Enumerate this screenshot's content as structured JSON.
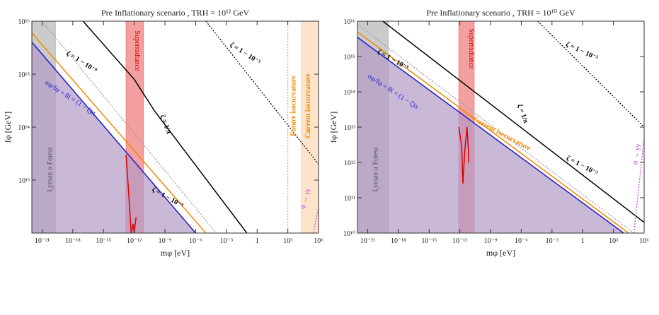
{
  "chart_data": [
    {
      "type": "line",
      "title": "Pre Inflationary scenario , TRH = 10¹² GeV",
      "x_label": "mφ [eV]",
      "y_label": "fφ [GeV]",
      "log_x": true,
      "log_y": true,
      "xlim": [
        1e-22,
        1000000.0
      ],
      "ylim": [
        1000000000000.0,
        1e+16
      ],
      "xticks": [
        {
          "value": 1e-21,
          "label": "10⁻²¹"
        },
        {
          "value": 1e-18,
          "label": "10⁻¹⁸"
        },
        {
          "value": 1e-15,
          "label": "10⁻¹⁵"
        },
        {
          "value": 1e-12,
          "label": "10⁻¹²"
        },
        {
          "value": 1e-09,
          "label": "10⁻⁹"
        },
        {
          "value": 1e-06,
          "label": "10⁻⁶"
        },
        {
          "value": 0.001,
          "label": "10⁻³"
        },
        1,
        {
          "value": 1000.0,
          "label": "10³"
        },
        {
          "value": 1000000.0,
          "label": "10⁶"
        }
      ],
      "yticks": [
        {
          "value": 10000000000000.0,
          "label": "10¹³"
        },
        {
          "value": 100000000000000.0,
          "label": "10¹⁴"
        },
        {
          "value": 1000000000000000.0,
          "label": "10¹⁵"
        },
        {
          "value": 1e+16,
          "label": "10¹⁶"
        }
      ],
      "bands": [
        {
          "x": [
            1e-22,
            2e-20
          ],
          "color": "#b9b9b9"
        },
        {
          "x": [
            1.6e-13,
            8e-12
          ],
          "color": "#f08080"
        },
        {
          "x": [
            20000.0,
            1000000.0
          ],
          "color": "#fcd9b8"
        }
      ],
      "vlines": [
        {
          "x": 1000.0,
          "color": "#f0a040"
        }
      ],
      "series": [
        {
          "color": "#b49ac6",
          "fill": true,
          "x": [
            1e-22,
            1e-06
          ],
          "y": [
            4000000000000000.0,
            1000000000000.0
          ]
        },
        {
          "color": "#999999",
          "dash": "dotted",
          "x": [
            1e-21,
            0.0001
          ],
          "y": [
            1e+16,
            1000000000000.0
          ]
        },
        {
          "color": "#f08a00",
          "x": [
            1e-22,
            1e-05
          ],
          "y": [
            6000000000000000.0,
            1000000000000.0
          ]
        },
        {
          "color": "#2020d0",
          "x": [
            1e-22,
            1e-06
          ],
          "y": [
            4000000000000000.0,
            1000000000000.0
          ]
        },
        {
          "color": "#000000",
          "x": [
            1e-17,
            1e-12,
            1e-10,
            0.1
          ],
          "y": [
            1e+16,
            800000000000000.0,
            200000000000000.0,
            1000000000000.0
          ]
        },
        {
          "color": "#000000",
          "dash": "dotted",
          "x": [
            1e-05,
            1000000.0
          ],
          "y": [
            1e+16,
            20000000000000.0
          ]
        },
        {
          "color": "#e00000",
          "x": [
            1.6e-13,
            3e-13,
            5e-13,
            8e-13,
            1e-12,
            1.5e-12
          ],
          "y": [
            30000000000000.0,
            5000000000000.0,
            1000000000000.0,
            1500000000000.0,
            1000000000000.0,
            2000000000000.0
          ]
        },
        {
          "color": "#d040d0",
          "dash": "dotted",
          "x": [
            300000.0,
            1000000.0
          ],
          "y": [
            1000000000000.0,
            3000000000000.0
          ]
        }
      ],
      "annotations": [
        "ζ = 1 − 10⁻⁹",
        "ζ = 1/π",
        "ζ = 1 − 10⁻³",
        "σφ/fφ = θi = (1 − ζ)π",
        "ζ = 1 − 10⁻⁹",
        "Lyman α Forest",
        "Superradiance",
        "Future isocurvature",
        "Current isocurvature",
        "φ → γγ"
      ]
    },
    {
      "type": "line",
      "title": "Pre Inflationary scenario , TRH = 10¹⁰ GeV",
      "x_label": "mφ [eV]",
      "y_label": "fφ [GeV]",
      "log_x": true,
      "log_y": true,
      "xlim": [
        1e-22,
        1000000.0
      ],
      "ylim": [
        10000000000.0,
        1e+16
      ],
      "xticks": [
        {
          "value": 1e-21,
          "label": "10⁻²¹"
        },
        {
          "value": 1e-18,
          "label": "10⁻¹⁸"
        },
        {
          "value": 1e-15,
          "label": "10⁻¹⁵"
        },
        {
          "value": 1e-12,
          "label": "10⁻¹²"
        },
        {
          "value": 1e-09,
          "label": "10⁻⁹"
        },
        {
          "value": 1e-06,
          "label": "10⁻⁶"
        },
        {
          "value": 0.001,
          "label": "10⁻³"
        },
        1,
        {
          "value": 1000.0,
          "label": "10³"
        },
        {
          "value": 1000000.0,
          "label": "10⁶"
        }
      ],
      "yticks": [
        {
          "value": 10000000000.0,
          "label": "10¹⁰"
        },
        {
          "value": 100000000000.0,
          "label": "10¹¹"
        },
        {
          "value": 1000000000000.0,
          "label": "10¹²"
        },
        {
          "value": 10000000000000.0,
          "label": "10¹³"
        },
        {
          "value": 100000000000000.0,
          "label": "10¹⁴"
        },
        {
          "value": 1000000000000000.0,
          "label": "10¹⁵"
        },
        {
          "value": 1e+16,
          "label": "10¹⁶"
        }
      ],
      "bands": [
        {
          "x": [
            1e-22,
            1e-19
          ],
          "color": "#b9b9b9"
        },
        {
          "x": [
            8e-13,
            2.5e-11
          ],
          "color": "#f08080"
        }
      ],
      "vlines": [],
      "series": [
        {
          "color": "#b49ac6",
          "fill": true,
          "x": [
            1e-22,
            10000.0
          ],
          "y": [
            3500000000000000.0,
            10000000000.0
          ]
        },
        {
          "color": "#999999",
          "dash": "dotted",
          "x": [
            1e-22,
            100000.0
          ],
          "y": [
            8000000000000000.0,
            10000000000.0
          ]
        },
        {
          "color": "#f08a00",
          "x": [
            1e-22,
            30000.0
          ],
          "y": [
            5000000000000000.0,
            10000000000.0
          ]
        },
        {
          "color": "#2020d0",
          "x": [
            1e-22,
            10000.0
          ],
          "y": [
            3500000000000000.0,
            10000000000.0
          ]
        },
        {
          "color": "#000000",
          "x": [
            3e-20,
            1000000.0
          ],
          "y": [
            1e+16,
            20000000000.0
          ]
        },
        {
          "color": "#000000",
          "dash": "dotted",
          "x": [
            4e-05,
            1000000.0
          ],
          "y": [
            1e+16,
            10000000000000.0
          ]
        },
        {
          "color": "#e00000",
          "x": [
            8e-13,
            1.5e-12,
            2e-12,
            3e-12,
            5e-12,
            7e-12,
            7e-12
          ],
          "y": [
            10000000000000.0,
            3000000000000.0,
            250000000000.0,
            2000000000000.0,
            10000000000000.0,
            2000000000000.0,
            1000000000000.0
          ]
        },
        {
          "color": "#d040d0",
          "dash": "dotted",
          "x": [
            100000.0,
            1000000.0
          ],
          "y": [
            10000000000.0,
            5000000000000.0
          ]
        }
      ],
      "annotations": [
        "ζ = 1 − 10⁻⁹",
        "ζ = 1/π",
        "ζ = 1 − 10⁻³",
        "σφ/fφ = θi = (1 − ζ)π",
        "ζ = 1 − 10⁻³",
        "Lyman α Forest",
        "Superradiance",
        "Current isocurvature",
        "φ → γγ"
      ]
    }
  ]
}
